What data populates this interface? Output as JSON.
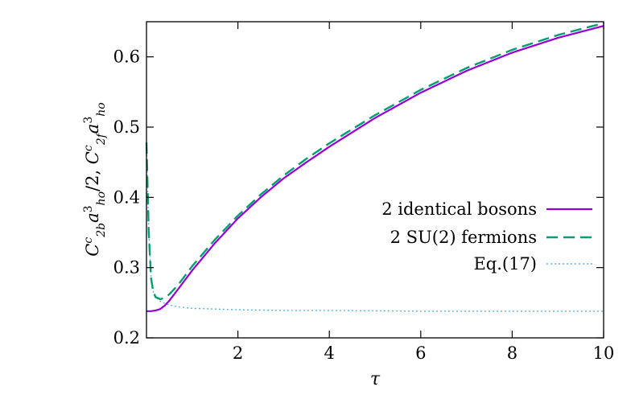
{
  "chart_data": {
    "type": "line",
    "xlabel": "τ",
    "ylabel_parts": [
      "C",
      "c",
      "2b",
      "a",
      "3",
      "ho",
      "/2,  ",
      "C",
      "c",
      "2f",
      "a",
      "3",
      "ho"
    ],
    "xlim": [
      0,
      10
    ],
    "ylim": [
      0.2,
      0.65
    ],
    "xticks": [
      2,
      4,
      6,
      8,
      10
    ],
    "yticks": [
      0.2,
      0.3,
      0.4,
      0.5,
      0.6
    ],
    "xtick_labels": [
      "2",
      "4",
      "6",
      "8",
      "10"
    ],
    "ytick_labels": [
      "0.2",
      "0.3",
      "0.4",
      "0.5",
      "0.6"
    ],
    "grid": false,
    "legend_position": "right",
    "series": [
      {
        "name": "2 identical bosons",
        "color": "#9400d3",
        "style": "solid",
        "x": [
          0.0,
          0.1,
          0.2,
          0.3,
          0.4,
          0.5,
          0.7,
          1.0,
          1.5,
          2.0,
          2.5,
          3.0,
          3.5,
          4.0,
          5.0,
          6.0,
          7.0,
          8.0,
          9.0,
          10.0
        ],
        "y": [
          0.238,
          0.238,
          0.239,
          0.241,
          0.246,
          0.253,
          0.27,
          0.296,
          0.335,
          0.37,
          0.4,
          0.427,
          0.45,
          0.472,
          0.513,
          0.549,
          0.58,
          0.606,
          0.627,
          0.644
        ]
      },
      {
        "name": "2 SU(2) fermions",
        "color": "#009e73",
        "style": "dashed",
        "x": [
          0.0,
          0.05,
          0.1,
          0.15,
          0.2,
          0.3,
          0.4,
          0.5,
          0.7,
          1.0,
          1.5,
          2.0,
          2.5,
          3.0,
          3.5,
          4.0,
          5.0,
          6.0,
          7.0,
          8.0,
          9.0,
          10.0
        ],
        "y": [
          0.478,
          0.35,
          0.285,
          0.265,
          0.258,
          0.255,
          0.257,
          0.262,
          0.276,
          0.302,
          0.34,
          0.374,
          0.404,
          0.431,
          0.455,
          0.477,
          0.517,
          0.553,
          0.584,
          0.61,
          0.631,
          0.648
        ]
      },
      {
        "name": "Eq.(17)",
        "color": "#56b4e9",
        "style": "dotted",
        "x": [
          0.0,
          0.05,
          0.1,
          0.15,
          0.2,
          0.3,
          0.4,
          0.5,
          0.7,
          1.0,
          1.5,
          2.0,
          3.0,
          4.0,
          6.0,
          8.0,
          10.0
        ],
        "y": [
          0.478,
          0.35,
          0.285,
          0.265,
          0.258,
          0.252,
          0.249,
          0.247,
          0.244,
          0.242,
          0.241,
          0.24,
          0.239,
          0.239,
          0.238,
          0.238,
          0.238
        ]
      }
    ]
  }
}
